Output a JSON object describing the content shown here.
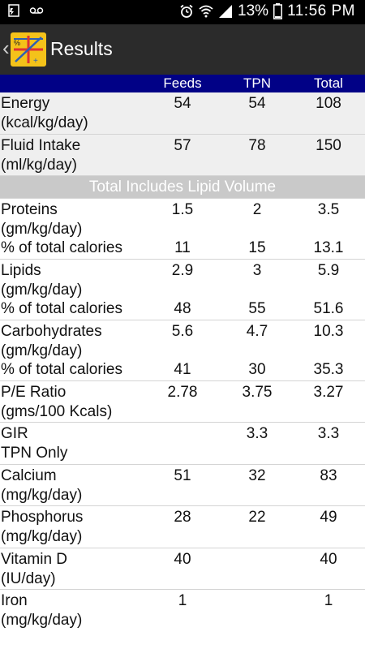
{
  "status_bar": {
    "battery": "13%",
    "time": "11:56 PM"
  },
  "action_bar": {
    "title": "Results"
  },
  "table": {
    "headers": [
      "Feeds",
      "TPN",
      "Total"
    ],
    "rows": [
      {
        "label1": "Energy",
        "label2": "(kcal/kg/day)",
        "feeds": "54",
        "tpn": "54",
        "total": "108"
      },
      {
        "label1": "Fluid Intake",
        "label2": "(ml/kg/day)",
        "feeds": "57",
        "tpn": "78",
        "total": "150"
      }
    ],
    "banner": "Total Includes Lipid Volume",
    "macro_rows": [
      {
        "label1": "Proteins",
        "label2": "(gm/kg/day)",
        "label3": "% of total calories",
        "feeds": "1.5",
        "tpn": "2",
        "total": "3.5",
        "feeds_pct": "11",
        "tpn_pct": "15",
        "total_pct": "13.1"
      },
      {
        "label1": "Lipids",
        "label2": "(gm/kg/day)",
        "label3": "% of total calories",
        "feeds": "2.9",
        "tpn": "3",
        "total": "5.9",
        "feeds_pct": "48",
        "tpn_pct": "55",
        "total_pct": "51.6"
      },
      {
        "label1": "Carbohydrates",
        "label2": "(gm/kg/day)",
        "label3": "% of total calories",
        "feeds": "5.6",
        "tpn": "4.7",
        "total": "10.3",
        "feeds_pct": "41",
        "tpn_pct": "30",
        "total_pct": "35.3"
      }
    ],
    "other_rows": [
      {
        "label1": "P/E Ratio",
        "label2": "(gms/100 Kcals)",
        "feeds": "2.78",
        "tpn": "3.75",
        "total": "3.27"
      },
      {
        "label1": "GIR",
        "label2": "TPN Only",
        "feeds": "",
        "tpn": "3.3",
        "total": "3.3"
      },
      {
        "label1": "Calcium",
        "label2": "(mg/kg/day)",
        "feeds": "51",
        "tpn": "32",
        "total": "83"
      },
      {
        "label1": "Phosphorus",
        "label2": "(mg/kg/day)",
        "feeds": "28",
        "tpn": "22",
        "total": "49"
      },
      {
        "label1": "Vitamin D",
        "label2": "(IU/day)",
        "feeds": "40",
        "tpn": "",
        "total": "40"
      },
      {
        "label1": "Iron",
        "label2": "(mg/kg/day)",
        "feeds": "1",
        "tpn": "",
        "total": "1"
      }
    ]
  }
}
